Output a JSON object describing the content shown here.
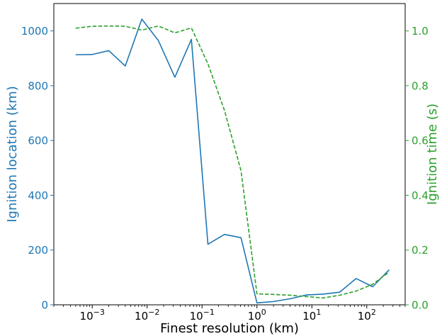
{
  "chart_data": {
    "type": "line",
    "xlabel": "Finest resolution (km)",
    "ylabel_left": "Ignition location (km)",
    "ylabel_right": "Ignition time (s)",
    "x_scale": "log",
    "xlim": [
      0.0002,
      500
    ],
    "ylim_left": [
      0,
      1100
    ],
    "ylim_right": [
      0,
      1.1
    ],
    "x_ticks": [
      0.001,
      0.01,
      0.1,
      1,
      10,
      100
    ],
    "x_tick_labels": [
      {
        "base": "10",
        "exp": "−3"
      },
      {
        "base": "10",
        "exp": "−2"
      },
      {
        "base": "10",
        "exp": "−1"
      },
      {
        "base": "10",
        "exp": "0"
      },
      {
        "base": "10",
        "exp": "1"
      },
      {
        "base": "10",
        "exp": "2"
      }
    ],
    "y_left_ticks": [
      0,
      200,
      400,
      600,
      800,
      1000
    ],
    "y_left_tick_labels": [
      "0",
      "200",
      "400",
      "600",
      "800",
      "1000"
    ],
    "y_right_ticks": [
      0,
      0.2,
      0.4,
      0.6,
      0.8,
      1.0
    ],
    "y_right_tick_labels": [
      "0.0",
      "0.2",
      "0.4",
      "0.6",
      "0.8",
      "1.0"
    ],
    "colors": {
      "left": "#1f77b4",
      "right": "#2ca02c",
      "axis": "#000000"
    },
    "grid": false,
    "series": [
      {
        "axis": "left",
        "style": "solid",
        "color": "#1f77b4",
        "x": [
          0.0005,
          0.001,
          0.002,
          0.004,
          0.008,
          0.016,
          0.032,
          0.064,
          0.128,
          0.256,
          0.512,
          1.0,
          2.0,
          4.0,
          8.0,
          16.0,
          32.0,
          64.0,
          128.0,
          256.0
        ],
        "y": [
          913,
          914,
          928,
          872,
          1043,
          965,
          831,
          969,
          221,
          257,
          245,
          7,
          12,
          22,
          36,
          39,
          46,
          96,
          66,
          128
        ]
      },
      {
        "axis": "right",
        "style": "dashed",
        "color": "#2ca02c",
        "x": [
          0.0005,
          0.001,
          0.002,
          0.004,
          0.008,
          0.016,
          0.032,
          0.064,
          0.128,
          0.256,
          0.512,
          1.0,
          2.0,
          4.0,
          8.0,
          16.0,
          32.0,
          64.0,
          128.0,
          256.0
        ],
        "y": [
          1.01,
          1.017,
          1.018,
          1.017,
          1.003,
          1.018,
          0.993,
          1.011,
          0.88,
          0.71,
          0.49,
          0.04,
          0.038,
          0.035,
          0.03,
          0.025,
          0.035,
          0.05,
          0.075,
          0.12
        ]
      }
    ]
  }
}
